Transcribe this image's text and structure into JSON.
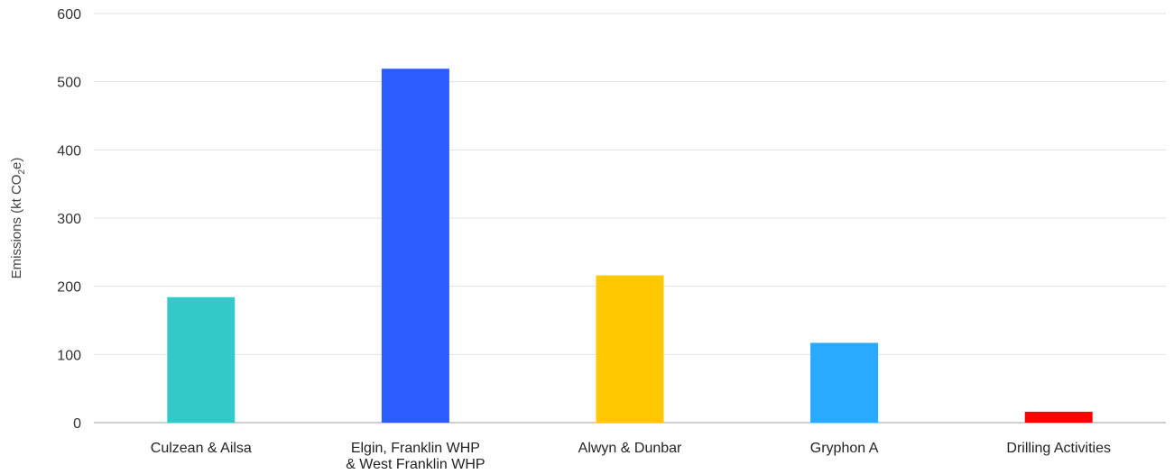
{
  "chart_data": {
    "type": "bar",
    "title": "",
    "xlabel": "",
    "ylabel": "Emissions (kt CO",
    "ylabel_subscript": "2",
    "ylabel_suffix": "e)",
    "ylim": [
      0,
      600
    ],
    "yticks": [
      0,
      100,
      200,
      300,
      400,
      500,
      600
    ],
    "grid": true,
    "legend": "none",
    "categories": [
      [
        "Culzean & Ailsa"
      ],
      [
        "Elgin, Franklin WHP",
        "& West Franklin WHP"
      ],
      [
        "Alwyn & Dunbar"
      ],
      [
        "Gryphon A"
      ],
      [
        "Drilling Activities"
      ]
    ],
    "values": [
      184,
      519,
      216,
      117,
      16
    ],
    "colors": [
      "#34c9c9",
      "#2b5cff",
      "#ffc800",
      "#29aaff",
      "#ff0000"
    ]
  }
}
